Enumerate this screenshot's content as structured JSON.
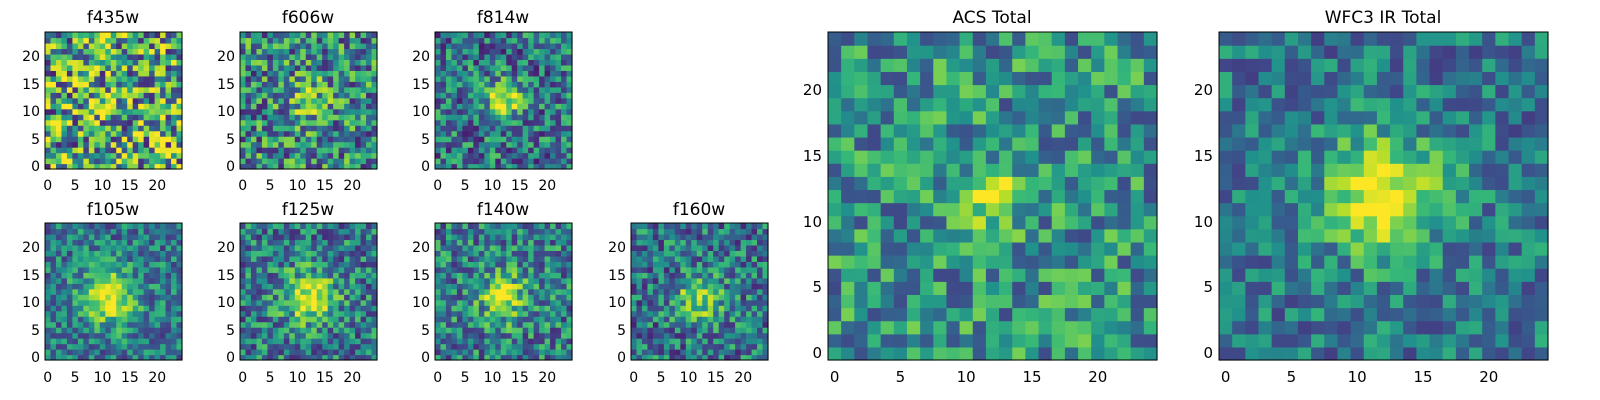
{
  "chart_data": [
    {
      "type": "heatmap",
      "title": "f435w",
      "xticks": [
        "0",
        "5",
        "10",
        "15",
        "20"
      ],
      "yticks": [
        "0",
        "5",
        "10",
        "15",
        "20"
      ],
      "xlim": [
        0,
        25
      ],
      "ylim": [
        0,
        25
      ],
      "grid": false,
      "colormap": "viridis"
    },
    {
      "type": "heatmap",
      "title": "f606w",
      "xticks": [
        "0",
        "5",
        "10",
        "15",
        "20"
      ],
      "yticks": [
        "0",
        "5",
        "10",
        "15",
        "20"
      ],
      "xlim": [
        0,
        25
      ],
      "ylim": [
        0,
        25
      ],
      "grid": false,
      "colormap": "viridis"
    },
    {
      "type": "heatmap",
      "title": "f814w",
      "xticks": [
        "0",
        "5",
        "10",
        "15",
        "20"
      ],
      "yticks": [
        "0",
        "5",
        "10",
        "15",
        "20"
      ],
      "xlim": [
        0,
        25
      ],
      "ylim": [
        0,
        25
      ],
      "grid": false,
      "colormap": "viridis"
    },
    {
      "type": "heatmap",
      "title": "f105w",
      "xticks": [
        "0",
        "5",
        "10",
        "15",
        "20"
      ],
      "yticks": [
        "0",
        "5",
        "10",
        "15",
        "20"
      ],
      "xlim": [
        0,
        25
      ],
      "ylim": [
        0,
        25
      ],
      "grid": false,
      "colormap": "viridis"
    },
    {
      "type": "heatmap",
      "title": "f125w",
      "xticks": [
        "0",
        "5",
        "10",
        "15",
        "20"
      ],
      "yticks": [
        "0",
        "5",
        "10",
        "15",
        "20"
      ],
      "xlim": [
        0,
        25
      ],
      "ylim": [
        0,
        25
      ],
      "grid": false,
      "colormap": "viridis"
    },
    {
      "type": "heatmap",
      "title": "f140w",
      "xticks": [
        "0",
        "5",
        "10",
        "15",
        "20"
      ],
      "yticks": [
        "0",
        "5",
        "10",
        "15",
        "20"
      ],
      "xlim": [
        0,
        25
      ],
      "ylim": [
        0,
        25
      ],
      "grid": false,
      "colormap": "viridis"
    },
    {
      "type": "heatmap",
      "title": "f160w",
      "xticks": [
        "0",
        "5",
        "10",
        "15",
        "20"
      ],
      "yticks": [
        "0",
        "5",
        "10",
        "15",
        "20"
      ],
      "xlim": [
        0,
        25
      ],
      "ylim": [
        0,
        25
      ],
      "grid": false,
      "colormap": "viridis"
    },
    {
      "type": "heatmap",
      "title": "ACS Total",
      "xticks": [
        "0",
        "5",
        "10",
        "15",
        "20"
      ],
      "yticks": [
        "0",
        "5",
        "10",
        "15",
        "20"
      ],
      "xlim": [
        0,
        25
      ],
      "ylim": [
        0,
        25
      ],
      "grid": false,
      "colormap": "viridis"
    },
    {
      "type": "heatmap",
      "title": "WFC3 IR Total",
      "xticks": [
        "0",
        "5",
        "10",
        "15",
        "20"
      ],
      "yticks": [
        "0",
        "5",
        "10",
        "15",
        "20"
      ],
      "xlim": [
        0,
        25
      ],
      "ylim": [
        0,
        25
      ],
      "grid": false,
      "colormap": "viridis"
    }
  ]
}
